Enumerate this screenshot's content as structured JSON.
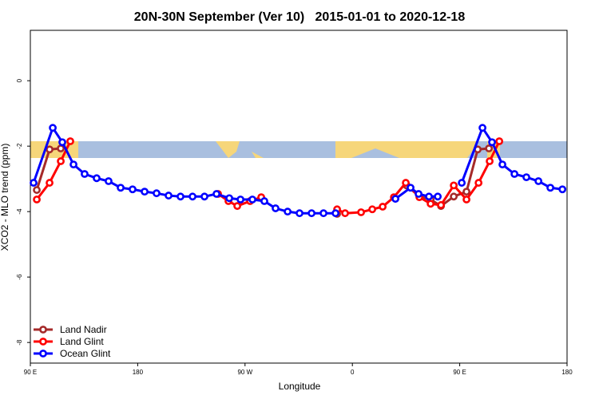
{
  "chart_data": {
    "type": "line",
    "title": "20N-30N September (Ver 10)   2015-01-01 to 2020-12-18",
    "xlabel": "Longitude",
    "ylabel": "XCO2 - MLO trend (ppm)",
    "xlim": [
      90,
      540
    ],
    "xticks": [
      {
        "value": 90,
        "label": "90 E"
      },
      180,
      {
        "value": 270,
        "label": "90 W"
      },
      {
        "value": 360,
        "label": "0"
      },
      {
        "value": 450,
        "label": "90 E"
      },
      {
        "value": 540,
        "label": "180"
      }
    ],
    "ylim": [
      -8.63,
      1.54
    ],
    "yticks": [
      0,
      -2,
      -4,
      -6,
      -8
    ],
    "legend": "bottom-left",
    "series": [
      {
        "name": "Land Nadir",
        "color": "#a52a2a",
        "x": [
          95.4,
          106.1,
          115.5,
          null,
          347.2,
          null,
          405.5,
          416.2,
          425.6,
          434.3,
          445.0,
          455.7,
          465.1,
          474.5
        ],
        "values": [
          -3.34,
          -2.1,
          -2.07,
          null,
          -4.07,
          null,
          -3.2,
          -3.54,
          -3.63,
          -3.83,
          -3.54,
          -3.39,
          -2.1,
          -2.07
        ]
      },
      {
        "name": "Land Glint",
        "color": "#ff0000",
        "x": [
          95.4,
          106.1,
          115.5,
          123.5,
          null,
          247.4,
          256.1,
          263.5,
          274.2,
          283.6,
          null,
          347.2,
          353.9,
          367.3,
          376.7,
          385.4,
          394.8,
          404.8,
          416.2,
          425.6,
          434.3,
          445.0,
          455.7,
          465.8,
          475.1,
          483.2
        ],
        "values": [
          -3.63,
          -3.12,
          -2.46,
          -1.85,
          null,
          -3.46,
          -3.68,
          -3.83,
          -3.68,
          -3.56,
          null,
          -3.93,
          -4.05,
          -4.02,
          -3.93,
          -3.85,
          -3.56,
          -3.12,
          -3.56,
          -3.76,
          -3.8,
          -3.2,
          -3.63,
          -3.12,
          -2.46,
          -1.85
        ]
      },
      {
        "name": "Ocean Glint",
        "color": "#0000ff",
        "x": [
          92.7,
          108.8,
          116.8,
          126.2,
          135.5,
          145.6,
          155.6,
          165.7,
          175.7,
          185.8,
          195.8,
          205.9,
          215.9,
          226.0,
          236.0,
          246.1,
          256.8,
          266.2,
          276.2,
          286.2,
          295.6,
          305.7,
          315.7,
          325.8,
          335.8,
          345.9,
          null,
          396.1,
          408.8,
          415.5,
          424.2,
          431.6,
          null,
          451.7,
          469.1,
          477.1,
          485.8,
          495.9,
          505.9,
          516.0,
          526.0,
          536.1
        ],
        "values": [
          -3.12,
          -1.44,
          -1.88,
          -2.56,
          -2.85,
          -2.98,
          -3.07,
          -3.27,
          -3.32,
          -3.39,
          -3.44,
          -3.51,
          -3.54,
          -3.54,
          -3.54,
          -3.46,
          -3.59,
          -3.63,
          -3.63,
          -3.68,
          -3.9,
          -4.0,
          -4.05,
          -4.05,
          -4.05,
          -4.05,
          null,
          -3.61,
          -3.27,
          -3.46,
          -3.54,
          -3.54,
          null,
          -3.12,
          -1.44,
          -1.88,
          -2.56,
          -2.85,
          -2.95,
          -3.07,
          -3.27,
          -3.32
        ]
      }
    ]
  }
}
